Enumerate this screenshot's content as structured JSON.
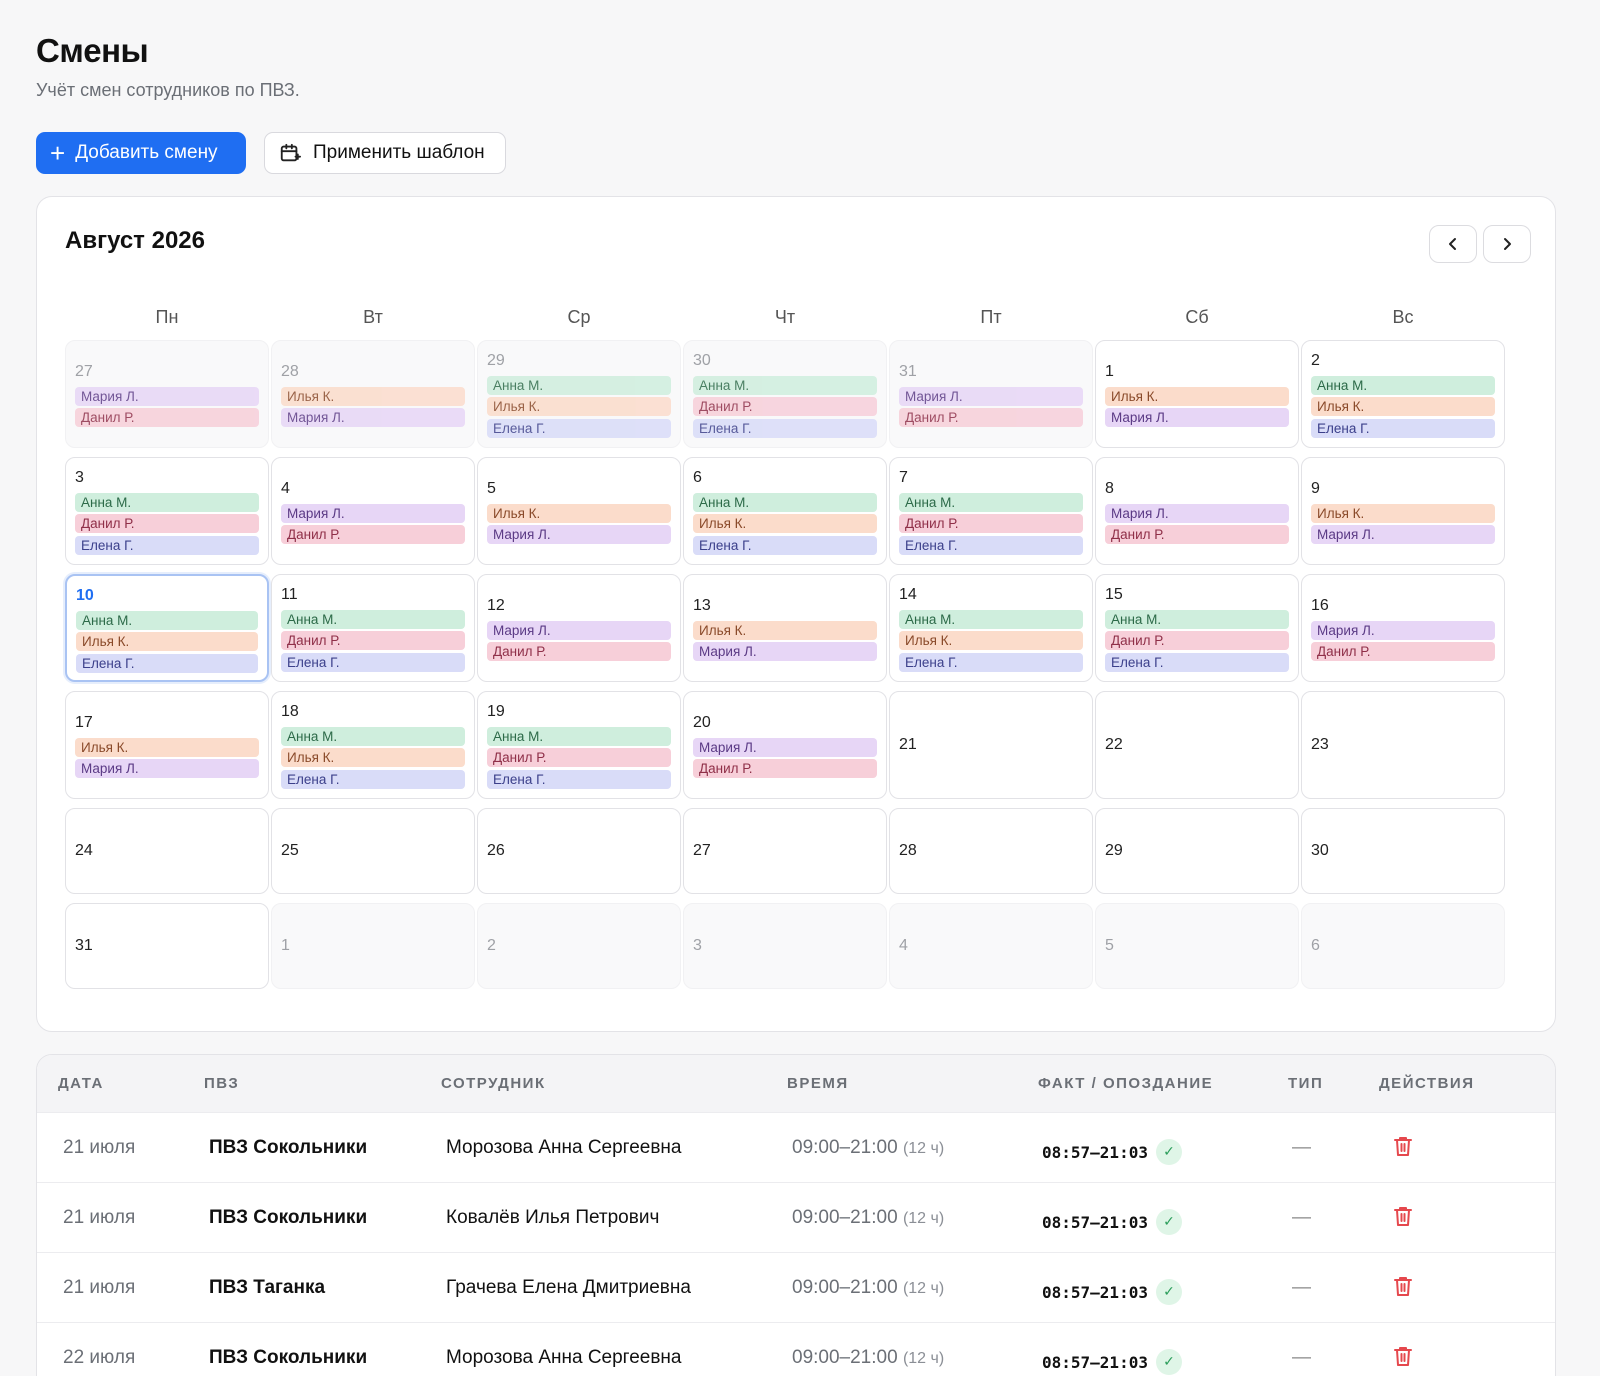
{
  "header": {
    "title": "Смены",
    "subtitle": "Учёт смен сотрудников по ПВЗ.",
    "add_button": "Добавить смену",
    "template_button": "Применить шаблон"
  },
  "calendar": {
    "month_title": "Август 2026",
    "weekdays": [
      "Пн",
      "Вт",
      "Ср",
      "Чт",
      "Пт",
      "Сб",
      "Вс"
    ],
    "weeks": [
      [
        {
          "day": "27",
          "muted": true,
          "shifts": [
            {
              "name": "Мария Л.",
              "color": "lilac"
            },
            {
              "name": "Данил Р.",
              "color": "pink"
            }
          ]
        },
        {
          "day": "28",
          "muted": true,
          "shifts": [
            {
              "name": "Илья К.",
              "color": "orange"
            },
            {
              "name": "Мария Л.",
              "color": "lilac"
            }
          ]
        },
        {
          "day": "29",
          "muted": true,
          "shifts": [
            {
              "name": "Анна М.",
              "color": "green"
            },
            {
              "name": "Илья К.",
              "color": "orange"
            },
            {
              "name": "Елена Г.",
              "color": "blue"
            }
          ]
        },
        {
          "day": "30",
          "muted": true,
          "shifts": [
            {
              "name": "Анна М.",
              "color": "green"
            },
            {
              "name": "Данил Р.",
              "color": "pink"
            },
            {
              "name": "Елена Г.",
              "color": "blue"
            }
          ]
        },
        {
          "day": "31",
          "muted": true,
          "shifts": [
            {
              "name": "Мария Л.",
              "color": "lilac"
            },
            {
              "name": "Данил Р.",
              "color": "pink"
            }
          ]
        },
        {
          "day": "1",
          "muted": false,
          "shifts": [
            {
              "name": "Илья К.",
              "color": "orange"
            },
            {
              "name": "Мария Л.",
              "color": "lilac"
            }
          ]
        },
        {
          "day": "2",
          "muted": false,
          "shifts": [
            {
              "name": "Анна М.",
              "color": "green"
            },
            {
              "name": "Илья К.",
              "color": "orange"
            },
            {
              "name": "Елена Г.",
              "color": "blue"
            }
          ]
        }
      ],
      [
        {
          "day": "3",
          "muted": false,
          "shifts": [
            {
              "name": "Анна М.",
              "color": "green"
            },
            {
              "name": "Данил Р.",
              "color": "pink"
            },
            {
              "name": "Елена Г.",
              "color": "blue"
            }
          ]
        },
        {
          "day": "4",
          "muted": false,
          "shifts": [
            {
              "name": "Мария Л.",
              "color": "lilac"
            },
            {
              "name": "Данил Р.",
              "color": "pink"
            }
          ]
        },
        {
          "day": "5",
          "muted": false,
          "shifts": [
            {
              "name": "Илья К.",
              "color": "orange"
            },
            {
              "name": "Мария Л.",
              "color": "lilac"
            }
          ]
        },
        {
          "day": "6",
          "muted": false,
          "shifts": [
            {
              "name": "Анна М.",
              "color": "green"
            },
            {
              "name": "Илья К.",
              "color": "orange"
            },
            {
              "name": "Елена Г.",
              "color": "blue"
            }
          ]
        },
        {
          "day": "7",
          "muted": false,
          "shifts": [
            {
              "name": "Анна М.",
              "color": "green"
            },
            {
              "name": "Данил Р.",
              "color": "pink"
            },
            {
              "name": "Елена Г.",
              "color": "blue"
            }
          ]
        },
        {
          "day": "8",
          "muted": false,
          "shifts": [
            {
              "name": "Мария Л.",
              "color": "lilac"
            },
            {
              "name": "Данил Р.",
              "color": "pink"
            }
          ]
        },
        {
          "day": "9",
          "muted": false,
          "shifts": [
            {
              "name": "Илья К.",
              "color": "orange"
            },
            {
              "name": "Мария Л.",
              "color": "lilac"
            }
          ]
        }
      ],
      [
        {
          "day": "10",
          "muted": false,
          "today": true,
          "shifts": [
            {
              "name": "Анна М.",
              "color": "green"
            },
            {
              "name": "Илья К.",
              "color": "orange"
            },
            {
              "name": "Елена Г.",
              "color": "blue"
            }
          ]
        },
        {
          "day": "11",
          "muted": false,
          "shifts": [
            {
              "name": "Анна М.",
              "color": "green"
            },
            {
              "name": "Данил Р.",
              "color": "pink"
            },
            {
              "name": "Елена Г.",
              "color": "blue"
            }
          ]
        },
        {
          "day": "12",
          "muted": false,
          "shifts": [
            {
              "name": "Мария Л.",
              "color": "lilac"
            },
            {
              "name": "Данил Р.",
              "color": "pink"
            }
          ]
        },
        {
          "day": "13",
          "muted": false,
          "shifts": [
            {
              "name": "Илья К.",
              "color": "orange"
            },
            {
              "name": "Мария Л.",
              "color": "lilac"
            }
          ]
        },
        {
          "day": "14",
          "muted": false,
          "shifts": [
            {
              "name": "Анна М.",
              "color": "green"
            },
            {
              "name": "Илья К.",
              "color": "orange"
            },
            {
              "name": "Елена Г.",
              "color": "blue"
            }
          ]
        },
        {
          "day": "15",
          "muted": false,
          "shifts": [
            {
              "name": "Анна М.",
              "color": "green"
            },
            {
              "name": "Данил Р.",
              "color": "pink"
            },
            {
              "name": "Елена Г.",
              "color": "blue"
            }
          ]
        },
        {
          "day": "16",
          "muted": false,
          "shifts": [
            {
              "name": "Мария Л.",
              "color": "lilac"
            },
            {
              "name": "Данил Р.",
              "color": "pink"
            }
          ]
        }
      ],
      [
        {
          "day": "17",
          "muted": false,
          "shifts": [
            {
              "name": "Илья К.",
              "color": "orange"
            },
            {
              "name": "Мария Л.",
              "color": "lilac"
            }
          ]
        },
        {
          "day": "18",
          "muted": false,
          "shifts": [
            {
              "name": "Анна М.",
              "color": "green"
            },
            {
              "name": "Илья К.",
              "color": "orange"
            },
            {
              "name": "Елена Г.",
              "color": "blue"
            }
          ]
        },
        {
          "day": "19",
          "muted": false,
          "shifts": [
            {
              "name": "Анна М.",
              "color": "green"
            },
            {
              "name": "Данил Р.",
              "color": "pink"
            },
            {
              "name": "Елена Г.",
              "color": "blue"
            }
          ]
        },
        {
          "day": "20",
          "muted": false,
          "shifts": [
            {
              "name": "Мария Л.",
              "color": "lilac"
            },
            {
              "name": "Данил Р.",
              "color": "pink"
            }
          ]
        },
        {
          "day": "21",
          "muted": false,
          "shifts": []
        },
        {
          "day": "22",
          "muted": false,
          "shifts": []
        },
        {
          "day": "23",
          "muted": false,
          "shifts": []
        }
      ],
      [
        {
          "day": "24",
          "muted": false,
          "shifts": []
        },
        {
          "day": "25",
          "muted": false,
          "shifts": []
        },
        {
          "day": "26",
          "muted": false,
          "shifts": []
        },
        {
          "day": "27",
          "muted": false,
          "shifts": []
        },
        {
          "day": "28",
          "muted": false,
          "shifts": []
        },
        {
          "day": "29",
          "muted": false,
          "shifts": []
        },
        {
          "day": "30",
          "muted": false,
          "shifts": []
        }
      ],
      [
        {
          "day": "31",
          "muted": false,
          "shifts": []
        },
        {
          "day": "1",
          "muted": true,
          "shifts": []
        },
        {
          "day": "2",
          "muted": true,
          "shifts": []
        },
        {
          "day": "3",
          "muted": true,
          "shifts": []
        },
        {
          "day": "4",
          "muted": true,
          "shifts": []
        },
        {
          "day": "5",
          "muted": true,
          "shifts": []
        },
        {
          "day": "6",
          "muted": true,
          "shifts": []
        }
      ]
    ]
  },
  "table": {
    "columns": [
      "ДАТА",
      "ПВЗ",
      "СОТРУДНИК",
      "ВРЕМЯ",
      "ФАКТ / ОПОЗДАНИЕ",
      "ТИП",
      "ДЕЙСТВИЯ"
    ],
    "rows": [
      {
        "date": "21 июля",
        "pvz": "ПВЗ Сокольники",
        "employee": "Морозова Анна Сергеевна",
        "time": "09:00–21:00",
        "duration": "(12 ч)",
        "fact": "08:57–21:03",
        "type": "—"
      },
      {
        "date": "21 июля",
        "pvz": "ПВЗ Сокольники",
        "employee": "Ковалёв Илья Петрович",
        "time": "09:00–21:00",
        "duration": "(12 ч)",
        "fact": "08:57–21:03",
        "type": "—"
      },
      {
        "date": "21 июля",
        "pvz": "ПВЗ Таганка",
        "employee": "Грачева Елена Дмитриевна",
        "time": "09:00–21:00",
        "duration": "(12 ч)",
        "fact": "08:57–21:03",
        "type": "—"
      },
      {
        "date": "22 июля",
        "pvz": "ПВЗ Сокольники",
        "employee": "Морозова Анна Сергеевна",
        "time": "09:00–21:00",
        "duration": "(12 ч)",
        "fact": "08:57–21:03",
        "type": "—"
      }
    ]
  },
  "icons": {
    "add": "plus-icon",
    "template": "calendar-plus-icon",
    "prev": "chevron-left-icon",
    "next": "chevron-right-icon",
    "check": "check-icon",
    "delete": "trash-icon"
  },
  "colors": {
    "primary": "#1f6ef2",
    "delete": "#e5484d",
    "success": "#2a9d5a"
  }
}
